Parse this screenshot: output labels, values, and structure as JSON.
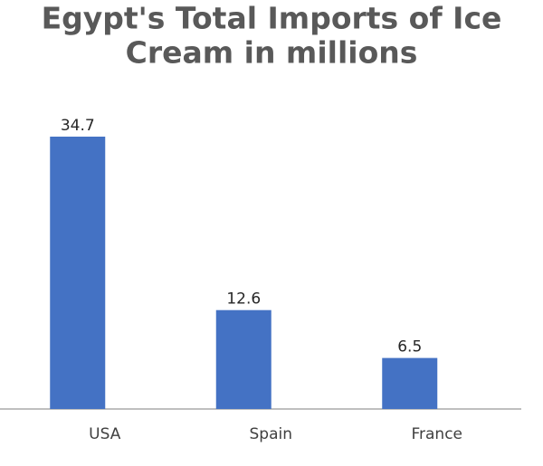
{
  "chart_data": {
    "type": "bar",
    "title_lines": [
      "Egypt's Total Imports of Ice",
      "Cream in millions"
    ],
    "categories": [
      "USA",
      "Spain",
      "France"
    ],
    "values": [
      34.7,
      12.6,
      6.5
    ],
    "color": "#4472c4"
  }
}
